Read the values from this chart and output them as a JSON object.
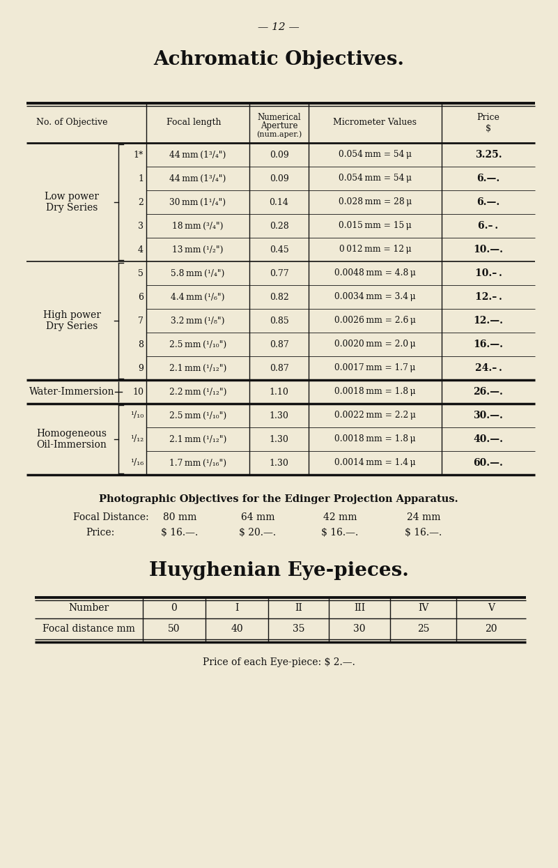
{
  "bg_color": "#f0ead6",
  "page_number": "— 12 —",
  "main_title": "Achromatic Objectives.",
  "sections": [
    {
      "label": "Low power\nDry Series",
      "bracket": true,
      "rows": [
        {
          "num": "1*",
          "focal": "44 mm (1³/₄\")",
          "na": "0.09",
          "micro": "0.054 mm = 54 μ",
          "price": "3.25."
        },
        {
          "num": "1",
          "focal": "44 mm (1³/₄\")",
          "na": "0.09",
          "micro": "0.054 mm = 54 μ",
          "price": "6.—."
        },
        {
          "num": "2",
          "focal": "30 mm (1¹/₄\")",
          "na": "0.14",
          "micro": "0.028 mm = 28 μ",
          "price": "6.—."
        },
        {
          "num": "3",
          "focal": "18 mm (³/₄\")",
          "na": "0.28",
          "micro": "0.015 mm = 15 μ",
          "price": "6.– ."
        },
        {
          "num": "4",
          "focal": "13 mm (¹/₂\")",
          "na": "0.45",
          "micro": "0 012 mm = 12 μ",
          "price": "10.—."
        }
      ]
    },
    {
      "label": "High power\nDry Series",
      "bracket": true,
      "rows": [
        {
          "num": "5",
          "focal": "5.8 mm (¹/₄\")",
          "na": "0.77",
          "micro": "0.0048 mm = 4.8 μ",
          "price": "10.– ."
        },
        {
          "num": "6",
          "focal": "4.4 mm (¹/₆\")",
          "na": "0.82",
          "micro": "0.0034 mm = 3.4 μ",
          "price": "12.– ."
        },
        {
          "num": "7",
          "focal": "3.2 mm (¹/₈\")",
          "na": "0.85",
          "micro": "0.0026 mm = 2.6 μ",
          "price": "12.—."
        },
        {
          "num": "8",
          "focal": "2.5 mm (¹/₁₀\")",
          "na": "0.87",
          "micro": "0.0020 mm = 2.0 μ",
          "price": "16.—."
        },
        {
          "num": "9",
          "focal": "2.1 mm (¹/₁₂\")",
          "na": "0.87",
          "micro": "0.0017 mm = 1.7 μ",
          "price": "24.– ."
        }
      ]
    },
    {
      "label": "Water-Immersion",
      "bracket": false,
      "rows": [
        {
          "num": "10",
          "focal": "2.2 mm (¹/₁₂\")",
          "na": "1.10",
          "micro": "0.0018 mm = 1.8 μ",
          "price": "26.—."
        }
      ]
    },
    {
      "label": "Homogeneous\nOil-Immersion",
      "bracket": true,
      "rows": [
        {
          "num": "¹/₁₀",
          "focal": "2.5 mm (¹/₁₀\")",
          "na": "1.30",
          "micro": "0.0022 mm = 2.2 μ",
          "price": "30.—."
        },
        {
          "num": "¹/₁₂",
          "focal": "2.1 mm (¹/₁₂\")",
          "na": "1.30",
          "micro": "0.0018 mm = 1.8 μ",
          "price": "40.—."
        },
        {
          "num": "¹/₁₆",
          "focal": "1.7 mm (¹/₁₆\")",
          "na": "1.30",
          "micro": "0.0014 mm = 1.4 μ",
          "price": "60.—."
        }
      ]
    }
  ],
  "photo_title": "Photographic Objectives for the Edinger Projection Apparatus.",
  "photo_focal_label": "Focal Distance:",
  "photo_focal_vals": [
    "80 mm",
    "64 mm",
    "42 mm",
    "24 mm"
  ],
  "photo_price_label": "Price:",
  "photo_price_vals": [
    "$ 16.—.",
    "$ 20.—.",
    "$ 16.—.",
    "$ 16.—."
  ],
  "eyepiece_title": "Huyghenian Eye-pieces.",
  "eyepiece_headers": [
    "Number",
    "0",
    "I",
    "II",
    "III",
    "IV",
    "V"
  ],
  "eyepiece_row": [
    "Focal distance mm",
    "50",
    "40",
    "35",
    "30",
    "25",
    "20"
  ],
  "eyepiece_footer": "Price of each Eye-piece: $ 2.—."
}
